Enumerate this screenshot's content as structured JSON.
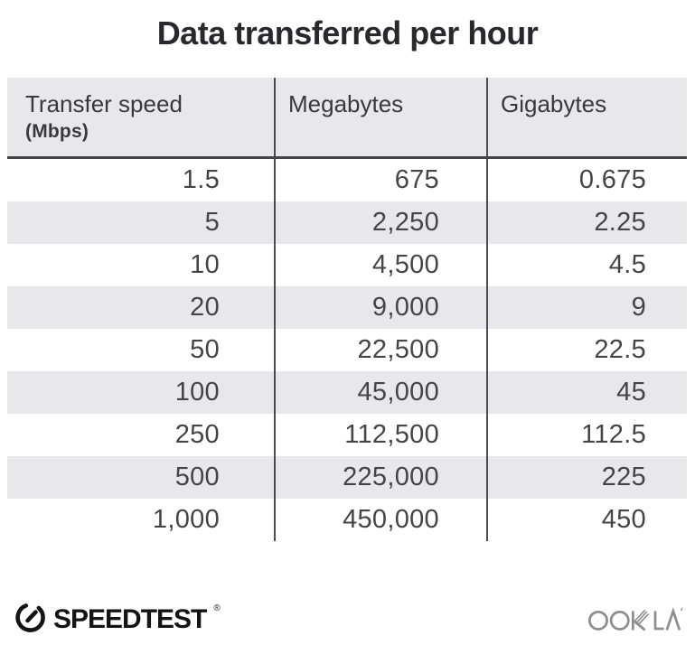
{
  "title": "Data transferred per hour",
  "table": {
    "columns": [
      {
        "label": "Transfer speed",
        "sublabel": "(Mbps)"
      },
      {
        "label": "Megabytes"
      },
      {
        "label": "Gigabytes"
      }
    ],
    "rows": [
      [
        "1.5",
        "675",
        "0.675"
      ],
      [
        "5",
        "2,250",
        "2.25"
      ],
      [
        "10",
        "4,500",
        "4.5"
      ],
      [
        "20",
        "9,000",
        "9"
      ],
      [
        "50",
        "22,500",
        "22.5"
      ],
      [
        "100",
        "45,000",
        "45"
      ],
      [
        "250",
        "112,500",
        "112.5"
      ],
      [
        "500",
        "225,000",
        "225"
      ],
      [
        "1,000",
        "450,000",
        "450"
      ]
    ]
  },
  "chart_data": {
    "type": "table",
    "title": "Data transferred per hour",
    "columns": [
      "Transfer speed (Mbps)",
      "Megabytes",
      "Gigabytes"
    ],
    "rows": [
      [
        1.5,
        675,
        0.675
      ],
      [
        5,
        2250,
        2.25
      ],
      [
        10,
        4500,
        4.5
      ],
      [
        20,
        9000,
        9
      ],
      [
        50,
        22500,
        22.5
      ],
      [
        100,
        45000,
        45
      ],
      [
        250,
        112500,
        112.5
      ],
      [
        500,
        225000,
        225
      ],
      [
        1000,
        450000,
        450
      ]
    ],
    "layout": {
      "stripe_even_rows": true,
      "column_dividers": true,
      "values_right_aligned": true
    }
  },
  "footer": {
    "speedtest_label": "SPEEDTEST",
    "speedtest_trademark": "®",
    "ookla_label": "OOKLA"
  },
  "colors": {
    "background": "#ffffff",
    "row_stripe": "#e8e7ec",
    "divider": "#4c4b50",
    "header_underline": "#434247",
    "title_text": "#29282d",
    "value_text": "#454449",
    "speedtest_black": "#141414",
    "ookla_gray": "#8e8d92"
  }
}
